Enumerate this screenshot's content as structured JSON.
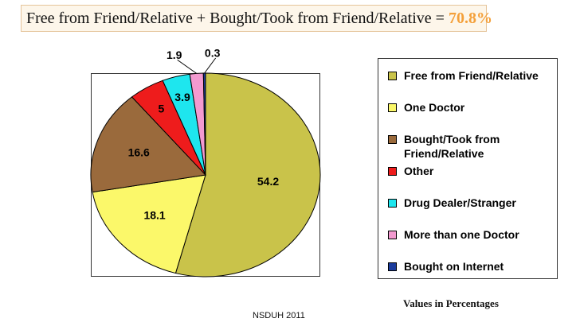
{
  "header": {
    "equation": "Free from Friend/Relative + Bought/Took from Friend/Relative = ",
    "total": "70.8%",
    "total_color": "#f4a03a"
  },
  "chart_data": {
    "type": "pie",
    "title": "",
    "unit_note": "Values in Percentages",
    "source": "NSDUH 2011",
    "legend_position": "right",
    "slices": [
      {
        "label": "Free from Friend/Relative",
        "value": 54.2,
        "display": "54.2",
        "color": "#c9c34a"
      },
      {
        "label": "One Doctor",
        "value": 18.1,
        "display": "18.1",
        "color": "#fbf86a"
      },
      {
        "label": "Bought/Took from Friend/Relative",
        "value": 16.6,
        "display": "16.6",
        "color": "#9a6a3c"
      },
      {
        "label": "Other",
        "value": 5.0,
        "display": "5",
        "color": "#ee1c1c"
      },
      {
        "label": "Drug Dealer/Stranger",
        "value": 3.9,
        "display": "3.9",
        "color": "#1ee6ee"
      },
      {
        "label": "More than one Doctor",
        "value": 1.9,
        "display": "1.9",
        "color": "#f39ad0"
      },
      {
        "label": "Bought on Internet",
        "value": 0.3,
        "display": "0.3",
        "color": "#1b3c9c"
      }
    ]
  }
}
